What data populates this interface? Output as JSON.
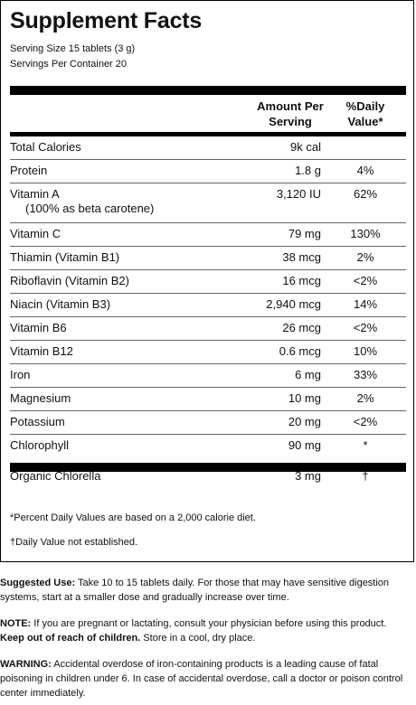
{
  "title": "Supplement Facts",
  "serving_size": "Serving Size 15 tablets (3 g)",
  "servings_per_container": "Servings Per Container 20",
  "header": {
    "amount_line1": "Amount Per",
    "amount_line2": "Serving",
    "dv_line1": "%Daily",
    "dv_line2": "Value*"
  },
  "rows": [
    {
      "name": "Total Calories",
      "amount": "9k cal",
      "dv": ""
    },
    {
      "name": "Protein",
      "amount": "1.8 g",
      "dv": "4%"
    },
    {
      "name": "Vitamin A",
      "sub": "(100% as beta carotene)",
      "amount": "3,120 IU",
      "dv": "62%"
    },
    {
      "name": "Vitamin C",
      "amount": "79 mg",
      "dv": "130%"
    },
    {
      "name": "Thiamin (Vitamin B1)",
      "amount": "38 mcg",
      "dv": "2%"
    },
    {
      "name": "Riboflavin (Vitamin B2)",
      "amount": "16 mcg",
      "dv": "<2%"
    },
    {
      "name": "Niacin (Vitamin B3)",
      "amount": "2,940 mcg",
      "dv": "14%"
    },
    {
      "name": "Vitamin B6",
      "amount": "26 mcg",
      "dv": "<2%"
    },
    {
      "name": "Vitamin B12",
      "amount": "0.6 mcg",
      "dv": "10%"
    },
    {
      "name": "Iron",
      "amount": "6 mg",
      "dv": "33%"
    },
    {
      "name": "Magnesium",
      "amount": "10 mg",
      "dv": "2%"
    },
    {
      "name": "Potassium",
      "amount": "20 mg",
      "dv": "<2%"
    },
    {
      "name": "Chlorophyll",
      "amount": "90 mg",
      "dv": "*"
    },
    {
      "name": "Organic Chlorella",
      "amount": "3 mg",
      "dv": "†"
    }
  ],
  "footnote_dv": "*Percent Daily Values are based on a 2,000 calorie diet.",
  "footnote_not_established": "†Daily Value not established.",
  "suggested_use": {
    "label": "Suggested Use:",
    "text": " Take 10 to 15 tablets daily. For those that may have sensitive digestion systems, start at a smaller dose and gradually increase over time."
  },
  "note": {
    "label": "NOTE:",
    "text": " If you are pregnant or lactating, consult your physician before using this product.",
    "keep_out": "Keep out of reach of children.",
    "storage": " Store in a cool, dry place."
  },
  "warning": {
    "label": "WARNING:",
    "text": " Accidental overdose of iron-containing products is a leading cause of fatal poisoning in children under 6. In case of accidental overdose, call a doctor or poison control center immediately."
  }
}
